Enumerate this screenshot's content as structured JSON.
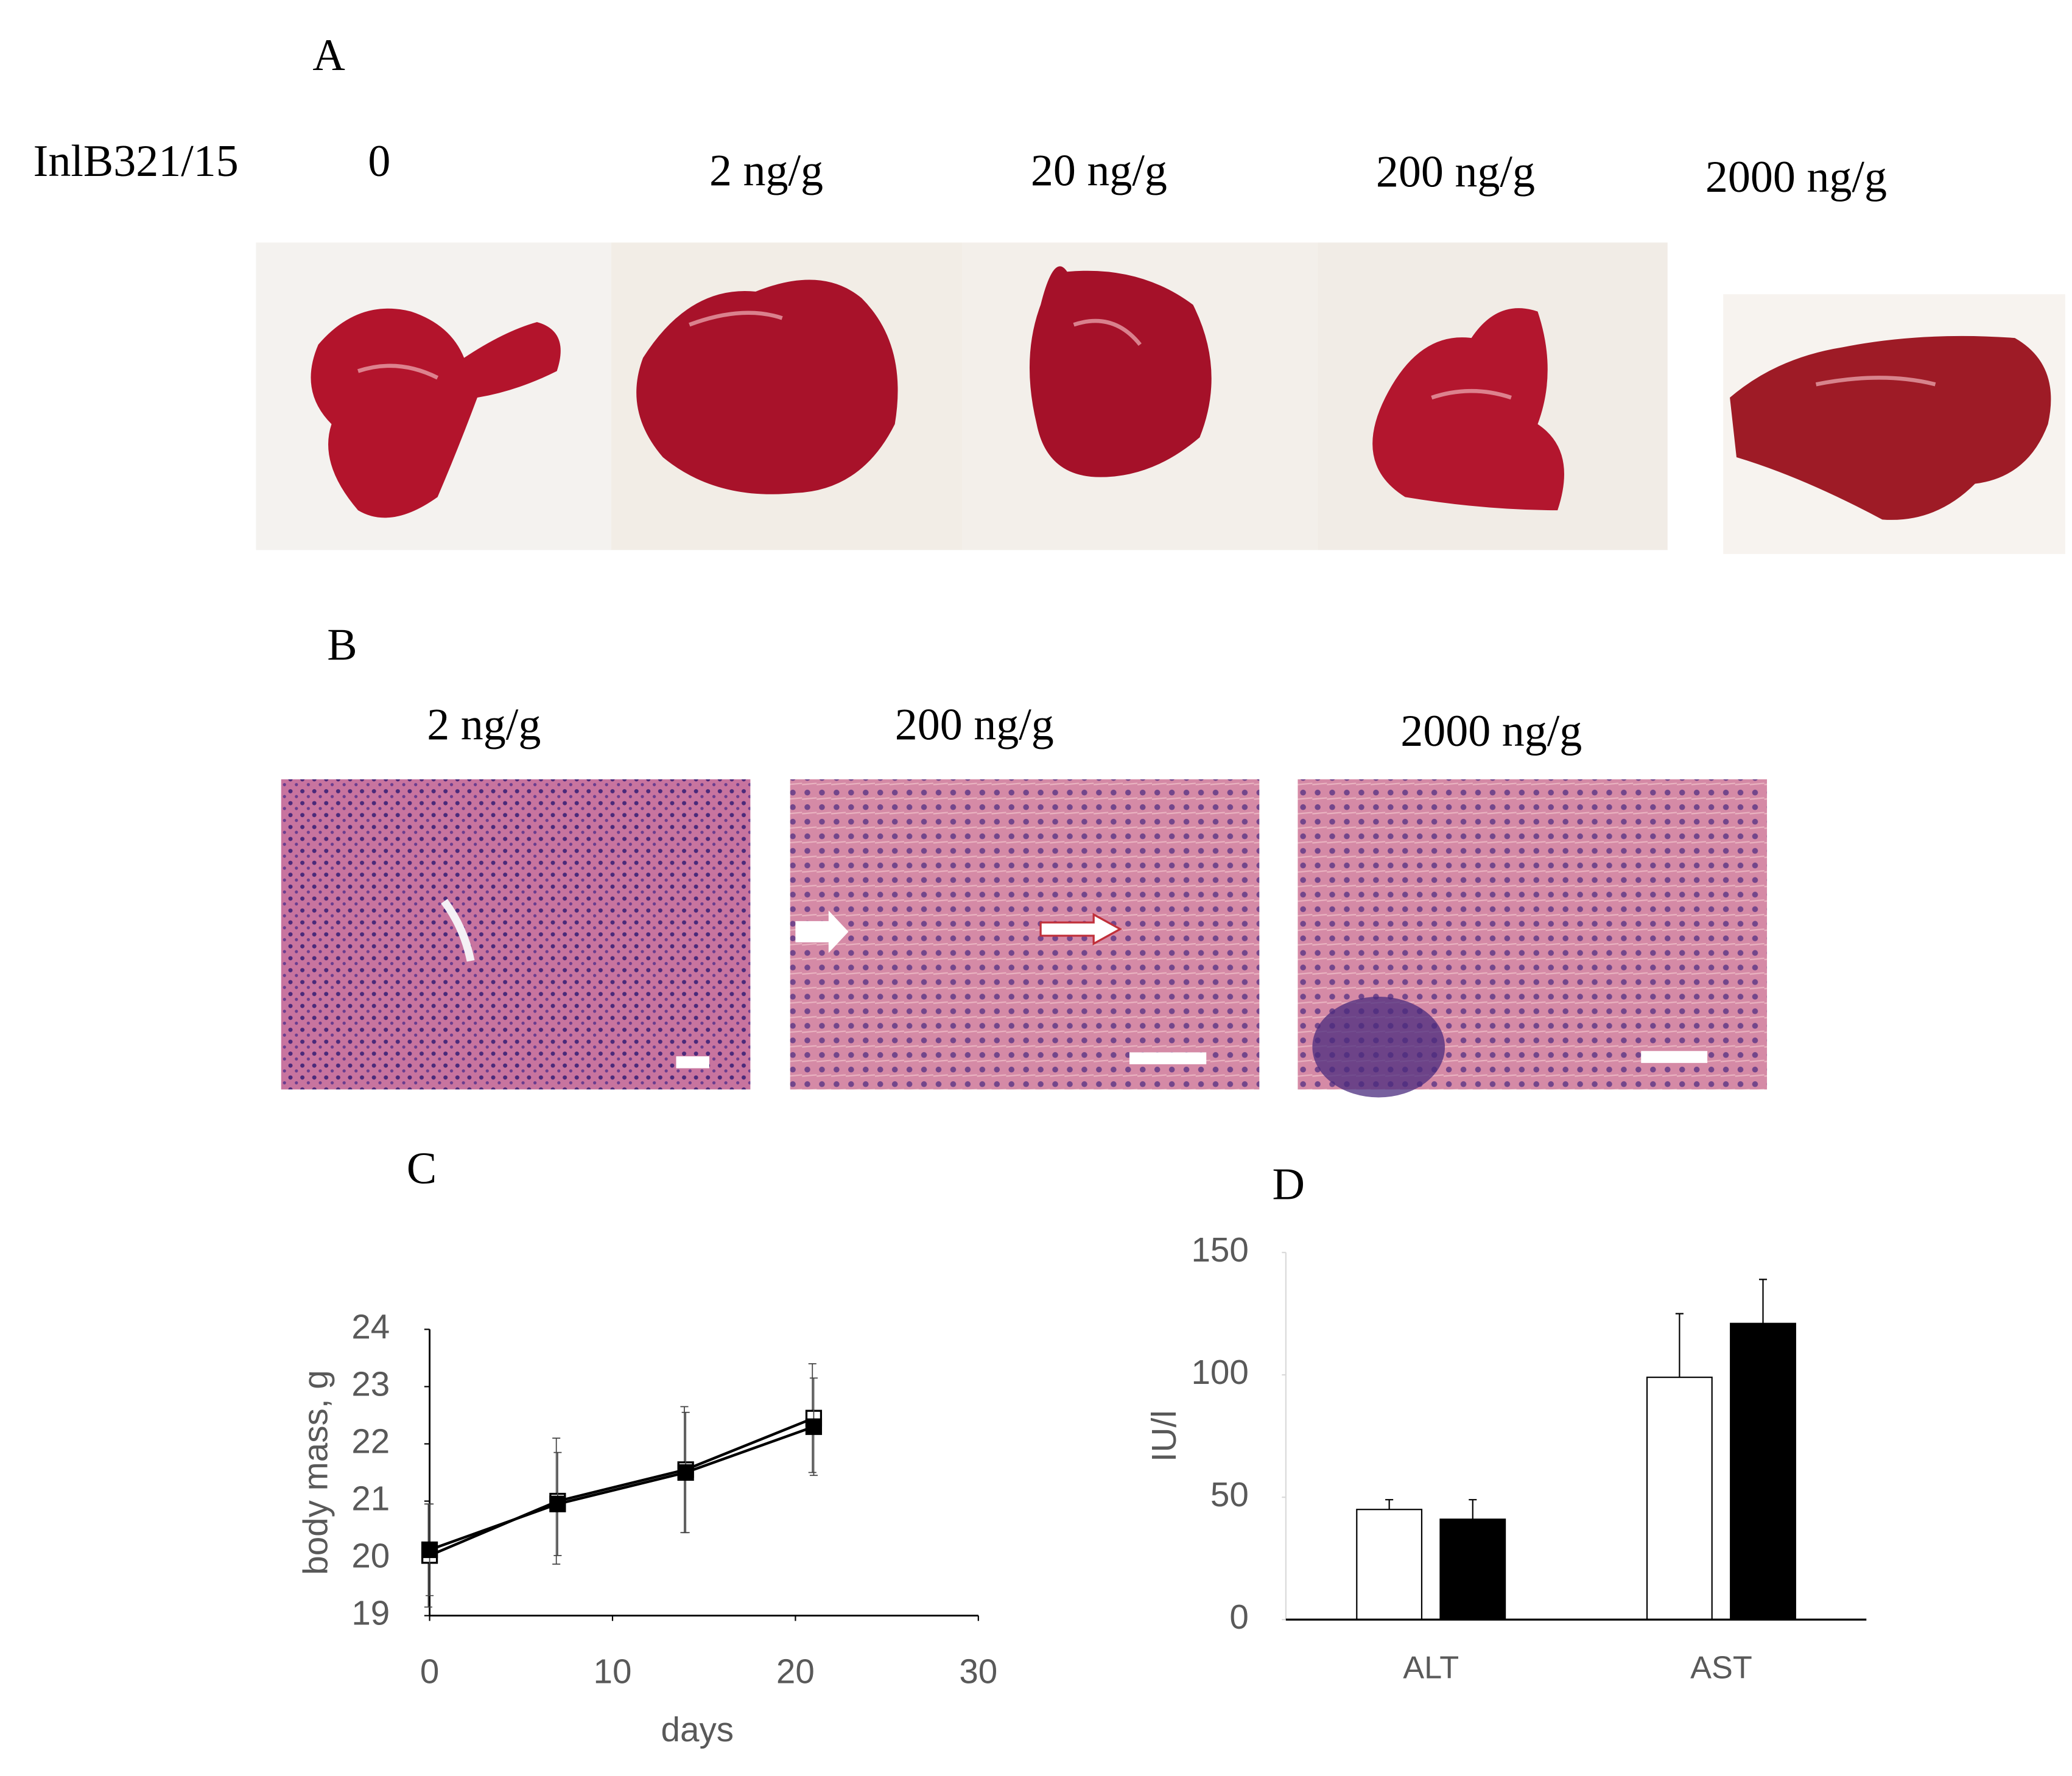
{
  "figure": {
    "panel_labels": [
      "A",
      "B",
      "C",
      "D"
    ],
    "compound": "InlB321/15",
    "doses_a": [
      "0",
      "2 ng/g",
      "20 ng/g",
      "200 ng/g",
      "2000 ng/g"
    ],
    "doses_b": [
      "2 ng/g",
      "200 ng/g",
      "2000 ng/g"
    ]
  },
  "chart_data": [
    {
      "type": "line",
      "xlabel": "days",
      "ylabel": "body mass, g",
      "x": [
        0,
        7,
        14,
        21
      ],
      "series": [
        {
          "color": "#000000",
          "fill": "#ffffff",
          "values": [
            20.05,
            21.0,
            21.55,
            22.45
          ],
          "errors": [
            0.9,
            1.1,
            1.1,
            0.95
          ]
        },
        {
          "color": "#000000",
          "fill": "#000000",
          "values": [
            20.15,
            20.95,
            21.5,
            22.3
          ],
          "errors": [
            0.8,
            0.9,
            1.05,
            0.85
          ]
        }
      ],
      "xlim": [
        0,
        30
      ],
      "xticks": [
        0,
        10,
        20,
        30
      ],
      "ylim": [
        19,
        24
      ],
      "yticks": [
        19,
        20,
        21,
        22,
        23,
        24
      ]
    },
    {
      "type": "bar",
      "ylabel": "IU/l",
      "categories": [
        "ALT",
        "AST"
      ],
      "series": [
        {
          "color": "#ffffff",
          "values": [
            45,
            99
          ],
          "errors": [
            4,
            26
          ]
        },
        {
          "color": "#000000",
          "values": [
            41,
            121
          ],
          "errors": [
            8,
            18
          ]
        }
      ],
      "ylim": [
        0,
        150
      ],
      "yticks": [
        0,
        50,
        100,
        150
      ]
    }
  ]
}
